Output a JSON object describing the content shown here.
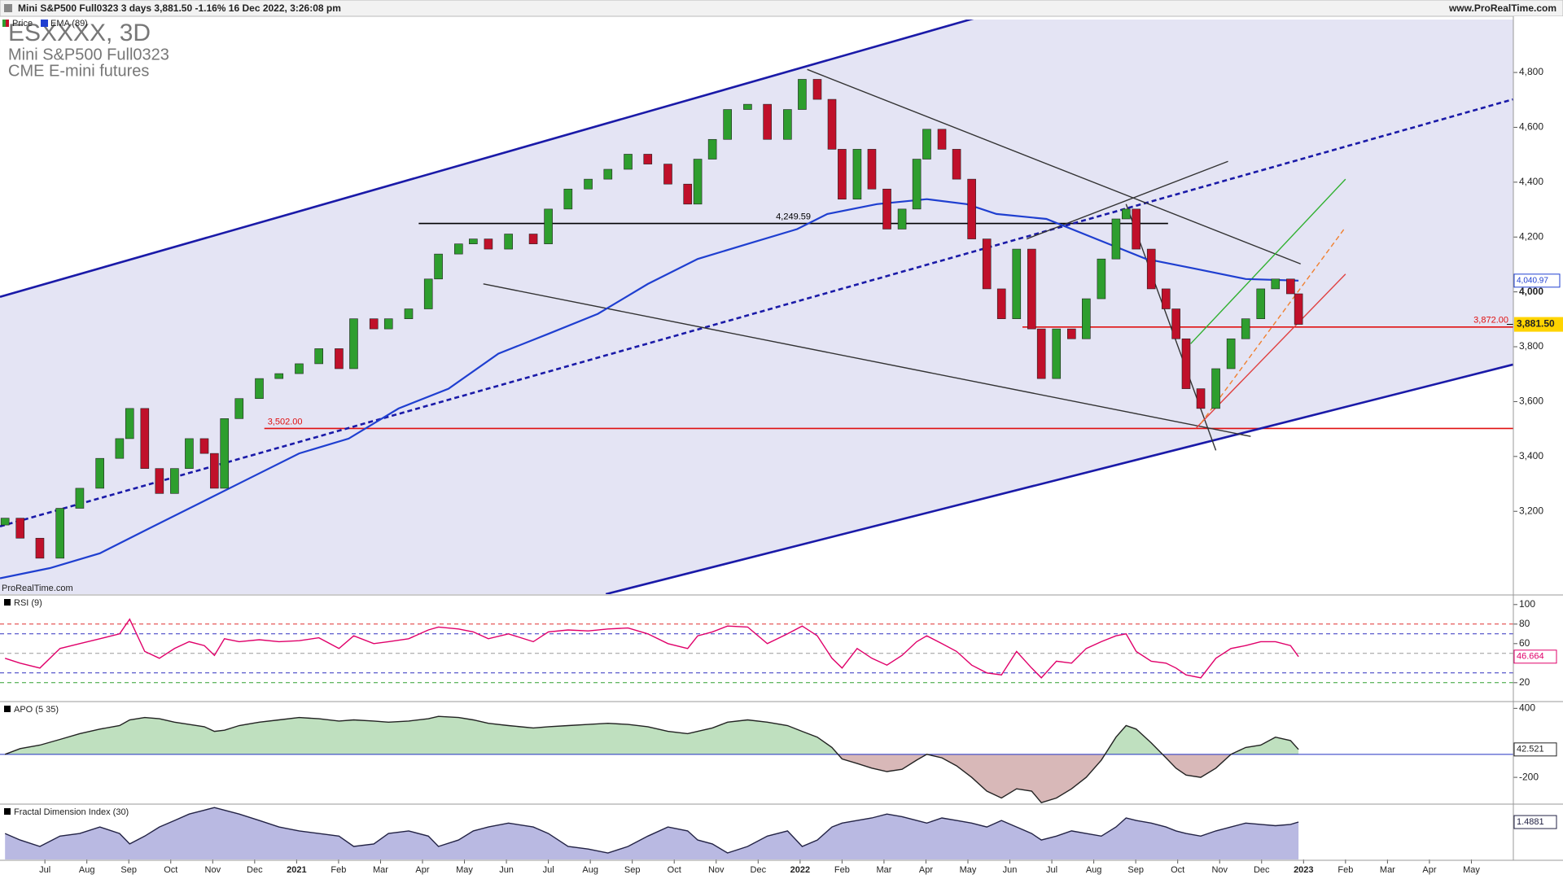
{
  "header": {
    "title": "Mini S&P500 Full0323 3 days 3,881.50 -1.16% 16 Dec 2022, 3:26:08 pm",
    "site": "www.ProRealTime.com",
    "watermark": "ProRealTime.com"
  },
  "chart_data": [
    {
      "type": "candlestick",
      "title": "ESXXXX, 3D",
      "subtitle": "Mini S&P500 Full0323",
      "caption": "CME E-mini futures",
      "name": "Price",
      "up_color": "#2e9e2e",
      "down_color": "#c0102a",
      "x": [
        -0.95,
        -0.59,
        -0.12,
        0.36,
        0.83,
        1.31,
        1.78,
        2.02,
        2.38,
        2.73,
        3.09,
        3.44,
        3.8,
        4.04,
        4.28,
        4.63,
        5.11,
        5.58,
        6.06,
        6.53,
        7.01,
        7.36,
        7.84,
        8.19,
        8.67,
        9.14,
        9.38,
        9.86,
        10.21,
        10.57,
        11.05,
        11.64,
        12.0,
        12.47,
        12.95,
        13.42,
        13.9,
        14.37,
        14.85,
        15.32,
        15.56,
        15.91,
        16.27,
        16.75,
        17.22,
        17.7,
        18.05,
        18.41,
        18.76,
        19.0,
        19.36,
        19.71,
        20.07,
        20.43,
        20.78,
        21.02,
        21.38,
        21.73,
        22.09,
        22.45,
        22.8,
        23.16,
        23.52,
        23.75,
        24.11,
        24.47,
        24.82,
        25.18,
        25.53,
        25.77,
        26.01,
        26.37,
        26.72,
        26.96,
        27.2,
        27.55,
        27.91,
        28.27,
        28.62,
        28.98,
        29.33,
        29.69,
        29.88
      ],
      "open": [
        3150,
        3175,
        3102,
        3029,
        3211,
        3284,
        3393,
        3465,
        3575,
        3356,
        3265,
        3356,
        3465,
        3411,
        3284,
        3538,
        3611,
        3684,
        3702,
        3738,
        3793,
        3720,
        3902,
        3865,
        3902,
        3938,
        4047,
        4138,
        4175,
        4193,
        4156,
        4211,
        4175,
        4302,
        4375,
        4411,
        4447,
        4502,
        4466,
        4393,
        4320,
        4484,
        4556,
        4665,
        4684,
        4556,
        4665,
        4775,
        4702,
        4520,
        4338,
        4520,
        4375,
        4229,
        4302,
        4484,
        4593,
        4520,
        4411,
        4193,
        4011,
        3902,
        4156,
        3865,
        3684,
        3865,
        3829,
        3975,
        4120,
        4266,
        4302,
        4156,
        4011,
        3938,
        3829,
        3647,
        3575,
        3720,
        3829,
        3902,
        4011,
        4047,
        3993
      ],
      "close": [
        3175,
        3102,
        3029,
        3211,
        3284,
        3393,
        3465,
        3575,
        3356,
        3265,
        3356,
        3465,
        3411,
        3284,
        3538,
        3611,
        3684,
        3702,
        3738,
        3793,
        3720,
        3902,
        3865,
        3902,
        3938,
        4047,
        4138,
        4175,
        4193,
        4156,
        4211,
        4175,
        4302,
        4375,
        4411,
        4447,
        4502,
        4466,
        4393,
        4320,
        4484,
        4556,
        4665,
        4684,
        4556,
        4665,
        4775,
        4702,
        4520,
        4338,
        4520,
        4375,
        4229,
        4302,
        4484,
        4593,
        4520,
        4411,
        4193,
        4011,
        3902,
        4156,
        3865,
        3684,
        3865,
        3829,
        3975,
        4120,
        4266,
        4302,
        4156,
        4011,
        3938,
        3829,
        3647,
        3575,
        3720,
        3829,
        3902,
        4011,
        4047,
        3993,
        3881.5
      ],
      "last_price": {
        "value": 3881.5,
        "label": "3,881.50"
      },
      "series": [
        {
          "name": "EMA (89)",
          "color": "#1f3fd0",
          "x": [
            -1.07,
            0.12,
            1.31,
            2.49,
            3.68,
            4.87,
            6.06,
            7.24,
            8.43,
            9.62,
            10.81,
            12.0,
            13.18,
            14.37,
            15.56,
            16.75,
            17.93,
            18.65,
            19.83,
            21.02,
            21.97,
            22.68,
            23.87,
            25.06,
            26.25,
            27.43,
            28.62,
            29.88
          ],
          "values": [
            2956,
            2993,
            3047,
            3138,
            3229,
            3320,
            3411,
            3465,
            3575,
            3647,
            3775,
            3847,
            3920,
            4029,
            4120,
            4175,
            4229,
            4284,
            4320,
            4338,
            4320,
            4284,
            4266,
            4193,
            4120,
            4084,
            4047,
            4040.97
          ],
          "last_value": {
            "value": 4040.97,
            "label": "4,040.97"
          }
        }
      ],
      "hlines": [
        {
          "value": 4249.59,
          "label": "4,249.59",
          "color": "#000000",
          "x": [
            8.91,
            26.77
          ],
          "label_pos": "middle"
        },
        {
          "value": 3872,
          "label": "3,872.00",
          "color": "#e01010",
          "x": [
            23.3,
            35
          ],
          "label_pos": "end"
        },
        {
          "value": 3502,
          "label": "3,502.00",
          "color": "#e01010",
          "x": [
            5.23,
            35
          ],
          "label_pos": "start"
        }
      ],
      "trendlines": [
        {
          "color": "#1a1aa8",
          "dash": false,
          "x": [
            -1.07,
            22.21
          ],
          "y": [
            3982,
            5000
          ]
        },
        {
          "color": "#1a1aa8",
          "dash": false,
          "x": [
            13.37,
            34.99
          ],
          "y": [
            2898,
            3735
          ]
        },
        {
          "color": "#1a1aa8",
          "dash": true,
          "x": [
            -1.07,
            34.99
          ],
          "y": [
            3145,
            4702
          ]
        },
        {
          "color": "#333333",
          "dash": false,
          "x": [
            18.17,
            29.93
          ],
          "y": [
            4811,
            4102
          ]
        },
        {
          "color": "#333333",
          "dash": false,
          "x": [
            10.45,
            28.74
          ],
          "y": [
            4029,
            3473
          ]
        },
        {
          "color": "#333333",
          "dash": false,
          "x": [
            25.77,
            27.91
          ],
          "y": [
            4320,
            3422
          ]
        },
        {
          "color": "#333333",
          "dash": false,
          "x": [
            23.4,
            28.2
          ],
          "y": [
            4193,
            4476
          ]
        },
        {
          "color": "#e04040",
          "dash": false,
          "x": [
            27.43,
            31.0
          ],
          "y": [
            3502,
            4065
          ]
        },
        {
          "color": "#30b030",
          "dash": false,
          "x": [
            27.31,
            31.0
          ],
          "y": [
            3811,
            4411
          ]
        },
        {
          "color": "#f08030",
          "dash": true,
          "x": [
            27.55,
            31.0
          ],
          "y": [
            3520,
            4236
          ]
        }
      ],
      "xlim": [
        -1.07,
        35
      ],
      "xticks": [
        {
          "value": 0,
          "label": "Jul"
        },
        {
          "value": 1,
          "label": "Aug"
        },
        {
          "value": 2,
          "label": "Sep"
        },
        {
          "value": 3,
          "label": "Oct"
        },
        {
          "value": 4,
          "label": "Nov"
        },
        {
          "value": 5,
          "label": "Dec"
        },
        {
          "value": 6,
          "label": "2021"
        },
        {
          "value": 7,
          "label": "Feb"
        },
        {
          "value": 8,
          "label": "Mar"
        },
        {
          "value": 9,
          "label": "Apr"
        },
        {
          "value": 10,
          "label": "May"
        },
        {
          "value": 11,
          "label": "Jun"
        },
        {
          "value": 12,
          "label": "Jul"
        },
        {
          "value": 13,
          "label": "Aug"
        },
        {
          "value": 14,
          "label": "Sep"
        },
        {
          "value": 15,
          "label": "Oct"
        },
        {
          "value": 16,
          "label": "Nov"
        },
        {
          "value": 17,
          "label": "Dec"
        },
        {
          "value": 18,
          "label": "2022"
        },
        {
          "value": 19,
          "label": "Feb"
        },
        {
          "value": 20,
          "label": "Mar"
        },
        {
          "value": 21,
          "label": "Apr"
        },
        {
          "value": 22,
          "label": "May"
        },
        {
          "value": 23,
          "label": "Jun"
        },
        {
          "value": 24,
          "label": "Jul"
        },
        {
          "value": 25,
          "label": "Aug"
        },
        {
          "value": 26,
          "label": "Sep"
        },
        {
          "value": 27,
          "label": "Oct"
        },
        {
          "value": 28,
          "label": "Nov"
        },
        {
          "value": 29,
          "label": "Dec"
        },
        {
          "value": 30,
          "label": "2023"
        },
        {
          "value": 31,
          "label": "Feb"
        },
        {
          "value": 32,
          "label": "Mar"
        },
        {
          "value": 33,
          "label": "Apr"
        },
        {
          "value": 34,
          "label": "May"
        }
      ],
      "ylim": [
        2898,
        4993
      ],
      "yticks": [
        {
          "value": 3200,
          "label": "3,200"
        },
        {
          "value": 3400,
          "label": "3,400"
        },
        {
          "value": 3600,
          "label": "3,600"
        },
        {
          "value": 3800,
          "label": "3,800"
        },
        {
          "value": 4000,
          "label": "4,000"
        },
        {
          "value": 4200,
          "label": "4,200"
        },
        {
          "value": 4400,
          "label": "4,400"
        },
        {
          "value": 4600,
          "label": "4,600"
        },
        {
          "value": 4800,
          "label": "4,800"
        }
      ]
    },
    {
      "type": "line",
      "title": "RSI (9)",
      "color": "#e0006a",
      "values": [
        45,
        40,
        35,
        55,
        60,
        65,
        70,
        85,
        52,
        45,
        55,
        62,
        58,
        48,
        65,
        62,
        64,
        62,
        63,
        66,
        55,
        68,
        60,
        62,
        65,
        74,
        77,
        75,
        72,
        65,
        70,
        62,
        72,
        74,
        73,
        75,
        76,
        70,
        60,
        55,
        68,
        72,
        78,
        77,
        60,
        70,
        78,
        68,
        45,
        35,
        55,
        45,
        38,
        48,
        62,
        68,
        60,
        52,
        38,
        30,
        28,
        52,
        35,
        25,
        42,
        40,
        55,
        62,
        68,
        70,
        52,
        42,
        40,
        35,
        28,
        25,
        45,
        55,
        58,
        62,
        62,
        58,
        46.664
      ],
      "ylim": [
        1.5,
        109
      ],
      "yticks": [
        20,
        60,
        80,
        100
      ],
      "levels": [
        {
          "value": 80,
          "color": "#e03030"
        },
        {
          "value": 70,
          "color": "#3030c0"
        },
        {
          "value": 50,
          "color": "#999999"
        },
        {
          "value": 30,
          "color": "#3030c0"
        },
        {
          "value": 20,
          "color": "#30a030"
        }
      ],
      "last_value": {
        "value": 46.664,
        "label": "46.664"
      }
    },
    {
      "type": "area",
      "title": "APO (5 35)",
      "color": "#222222",
      "pos_color": "#bfe0bf",
      "neg_color": "#d8b8b8",
      "baseline": 0,
      "values": [
        0,
        50,
        80,
        130,
        180,
        220,
        250,
        300,
        320,
        310,
        280,
        260,
        240,
        200,
        210,
        250,
        280,
        300,
        320,
        310,
        290,
        300,
        290,
        280,
        290,
        310,
        330,
        320,
        300,
        270,
        250,
        230,
        240,
        250,
        260,
        270,
        260,
        240,
        200,
        180,
        200,
        230,
        280,
        300,
        280,
        250,
        200,
        150,
        60,
        -40,
        -80,
        -120,
        -150,
        -130,
        -50,
        0,
        -30,
        -100,
        -200,
        -320,
        -380,
        -300,
        -320,
        -420,
        -380,
        -300,
        -200,
        -50,
        150,
        250,
        220,
        100,
        -30,
        -120,
        -180,
        -200,
        -120,
        0,
        60,
        80,
        150,
        120,
        42.521
      ],
      "ylim": [
        -426,
        452
      ],
      "yticks": [
        -200,
        400
      ],
      "last_value": {
        "value": 42.521,
        "label": "42.521"
      }
    },
    {
      "type": "area",
      "title": "Fractal Dimension Index (30)",
      "color": "#222244",
      "fill": "#b9b9e2",
      "values": [
        1.4,
        1.35,
        1.3,
        1.38,
        1.4,
        1.45,
        1.4,
        1.32,
        1.38,
        1.45,
        1.5,
        1.55,
        1.58,
        1.6,
        1.58,
        1.55,
        1.5,
        1.45,
        1.42,
        1.4,
        1.38,
        1.3,
        1.32,
        1.4,
        1.42,
        1.38,
        1.3,
        1.35,
        1.42,
        1.45,
        1.48,
        1.45,
        1.4,
        1.3,
        1.28,
        1.25,
        1.3,
        1.38,
        1.45,
        1.42,
        1.35,
        1.32,
        1.25,
        1.3,
        1.38,
        1.42,
        1.3,
        1.35,
        1.45,
        1.48,
        1.5,
        1.52,
        1.55,
        1.53,
        1.5,
        1.48,
        1.52,
        1.5,
        1.48,
        1.45,
        1.5,
        1.45,
        1.4,
        1.35,
        1.38,
        1.42,
        1.4,
        1.38,
        1.45,
        1.52,
        1.5,
        1.48,
        1.45,
        1.42,
        1.4,
        1.38,
        1.42,
        1.45,
        1.48,
        1.47,
        1.46,
        1.47,
        1.4881
      ],
      "ylim": [
        1.2,
        1.62
      ],
      "last_value": {
        "value": 1.4881,
        "label": "1.4881"
      }
    }
  ]
}
